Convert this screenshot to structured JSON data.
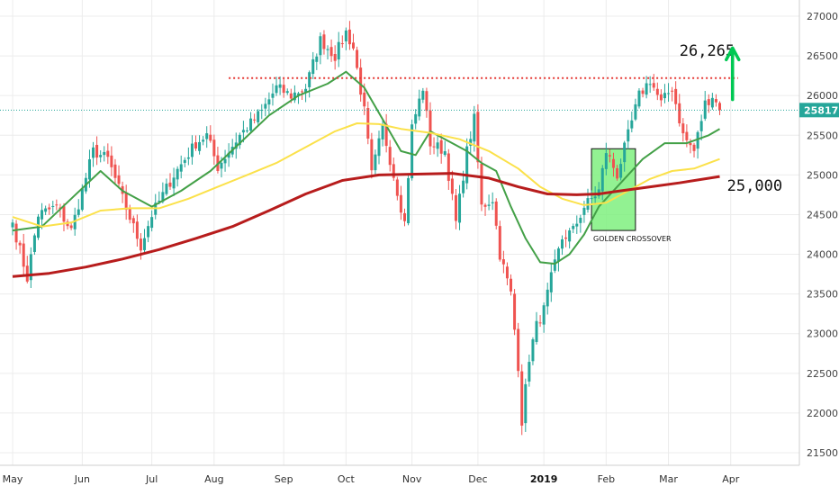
{
  "chart_data": {
    "type": "candlestick",
    "ylim": [
      21500,
      27100
    ],
    "y_ticks": [
      21500,
      22000,
      22500,
      23000,
      23500,
      24000,
      24500,
      25000,
      25500,
      26000,
      26500,
      27000
    ],
    "y_tick_labels": [
      "21500.0",
      "22000.0",
      "22500.0",
      "23000.0",
      "23500.0",
      "24000.0",
      "24500.0",
      "25000.0",
      "25500.0",
      "26000.0",
      "26500.0",
      "27000.0"
    ],
    "x_ticks": [
      {
        "label": "May",
        "i": 0
      },
      {
        "label": "Jun",
        "i": 19
      },
      {
        "label": "Jul",
        "i": 38
      },
      {
        "label": "Aug",
        "i": 55
      },
      {
        "label": "Sep",
        "i": 74
      },
      {
        "label": "Oct",
        "i": 91
      },
      {
        "label": "Nov",
        "i": 109
      },
      {
        "label": "Dec",
        "i": 127
      },
      {
        "label": "2019",
        "i": 145,
        "bold": true
      },
      {
        "label": "Feb",
        "i": 162
      },
      {
        "label": "Mar",
        "i": 179
      },
      {
        "label": "Apr",
        "i": 196
      }
    ],
    "anchors": [
      [
        0,
        24400
      ],
      [
        4,
        23700
      ],
      [
        7,
        24500
      ],
      [
        12,
        24600
      ],
      [
        16,
        24300
      ],
      [
        22,
        25300
      ],
      [
        26,
        25200
      ],
      [
        30,
        24700
      ],
      [
        35,
        24100
      ],
      [
        38,
        24500
      ],
      [
        44,
        25000
      ],
      [
        50,
        25400
      ],
      [
        53,
        25500
      ],
      [
        56,
        25100
      ],
      [
        62,
        25500
      ],
      [
        68,
        25800
      ],
      [
        72,
        26100
      ],
      [
        76,
        26000
      ],
      [
        80,
        26100
      ],
      [
        84,
        26700
      ],
      [
        88,
        26500
      ],
      [
        91,
        26800
      ],
      [
        93,
        26600
      ],
      [
        96,
        25800
      ],
      [
        98,
        25000
      ],
      [
        101,
        25600
      ],
      [
        105,
        24800
      ],
      [
        107,
        24400
      ],
      [
        109,
        25600
      ],
      [
        112,
        26100
      ],
      [
        114,
        25400
      ],
      [
        118,
        25300
      ],
      [
        121,
        24400
      ],
      [
        124,
        25300
      ],
      [
        126,
        25700
      ],
      [
        128,
        24600
      ],
      [
        131,
        24700
      ],
      [
        133,
        24000
      ],
      [
        136,
        23500
      ],
      [
        138,
        22600
      ],
      [
        139,
        21900
      ],
      [
        141,
        22700
      ],
      [
        143,
        23100
      ],
      [
        145,
        23300
      ],
      [
        147,
        23700
      ],
      [
        150,
        24200
      ],
      [
        153,
        24300
      ],
      [
        156,
        24600
      ],
      [
        160,
        24800
      ],
      [
        162,
        25300
      ],
      [
        165,
        25000
      ],
      [
        168,
        25500
      ],
      [
        171,
        26000
      ],
      [
        174,
        26200
      ],
      [
        177,
        25900
      ],
      [
        180,
        26100
      ],
      [
        183,
        25500
      ],
      [
        186,
        25300
      ],
      [
        189,
        25900
      ],
      [
        191,
        26000
      ],
      [
        193,
        25817
      ]
    ],
    "series": [
      {
        "name": "",
        "kind": "ma-short",
        "color": "#43a047",
        "points": [
          [
            0,
            24300
          ],
          [
            8,
            24350
          ],
          [
            16,
            24700
          ],
          [
            24,
            25050
          ],
          [
            30,
            24800
          ],
          [
            38,
            24600
          ],
          [
            46,
            24800
          ],
          [
            54,
            25050
          ],
          [
            62,
            25400
          ],
          [
            70,
            25750
          ],
          [
            78,
            26000
          ],
          [
            86,
            26150
          ],
          [
            91,
            26300
          ],
          [
            96,
            26100
          ],
          [
            101,
            25700
          ],
          [
            106,
            25300
          ],
          [
            110,
            25250
          ],
          [
            114,
            25550
          ],
          [
            118,
            25450
          ],
          [
            124,
            25300
          ],
          [
            128,
            25150
          ],
          [
            132,
            25050
          ],
          [
            136,
            24600
          ],
          [
            140,
            24200
          ],
          [
            144,
            23900
          ],
          [
            148,
            23880
          ],
          [
            152,
            24000
          ],
          [
            156,
            24250
          ],
          [
            160,
            24600
          ],
          [
            166,
            24900
          ],
          [
            172,
            25200
          ],
          [
            178,
            25400
          ],
          [
            184,
            25400
          ],
          [
            190,
            25500
          ],
          [
            193,
            25580
          ]
        ]
      },
      {
        "name": "",
        "kind": "ma-mid",
        "color": "#fbe14a",
        "points": [
          [
            0,
            24470
          ],
          [
            8,
            24350
          ],
          [
            16,
            24400
          ],
          [
            24,
            24550
          ],
          [
            32,
            24580
          ],
          [
            40,
            24580
          ],
          [
            48,
            24700
          ],
          [
            56,
            24850
          ],
          [
            64,
            25000
          ],
          [
            72,
            25150
          ],
          [
            80,
            25350
          ],
          [
            88,
            25550
          ],
          [
            94,
            25650
          ],
          [
            100,
            25640
          ],
          [
            106,
            25580
          ],
          [
            114,
            25530
          ],
          [
            122,
            25450
          ],
          [
            130,
            25300
          ],
          [
            138,
            25080
          ],
          [
            144,
            24850
          ],
          [
            150,
            24700
          ],
          [
            156,
            24620
          ],
          [
            162,
            24650
          ],
          [
            168,
            24800
          ],
          [
            174,
            24950
          ],
          [
            180,
            25050
          ],
          [
            186,
            25080
          ],
          [
            193,
            25200
          ]
        ]
      },
      {
        "name": "",
        "kind": "ma-long",
        "color": "#b71c1c",
        "points": [
          [
            0,
            23720
          ],
          [
            10,
            23760
          ],
          [
            20,
            23840
          ],
          [
            30,
            23940
          ],
          [
            40,
            24060
          ],
          [
            50,
            24200
          ],
          [
            60,
            24350
          ],
          [
            70,
            24550
          ],
          [
            80,
            24760
          ],
          [
            90,
            24930
          ],
          [
            100,
            25000
          ],
          [
            110,
            25010
          ],
          [
            120,
            25020
          ],
          [
            130,
            24960
          ],
          [
            138,
            24850
          ],
          [
            146,
            24760
          ],
          [
            154,
            24750
          ],
          [
            160,
            24760
          ],
          [
            166,
            24800
          ],
          [
            174,
            24850
          ],
          [
            182,
            24900
          ],
          [
            193,
            24980
          ]
        ]
      }
    ],
    "resistance": {
      "y": 26220,
      "x_from": 59,
      "x_to": 198,
      "color": "#e53935"
    },
    "last_price": {
      "value": 25817,
      "label": "25817.2",
      "color": "#26a69a"
    },
    "annotations": {
      "target_label": "26,265",
      "support_label": "25,000",
      "crossover_label": "GOLDEN CROSSOVER",
      "crossover_box": {
        "i_from": 158,
        "i_to": 170,
        "y_from": 24300,
        "y_to": 25330
      }
    },
    "colors": {
      "up": "#26a69a",
      "down": "#ef5350",
      "arrow": "#00c853",
      "box_fill": "#7ff07f",
      "grid": "#ececec"
    }
  }
}
